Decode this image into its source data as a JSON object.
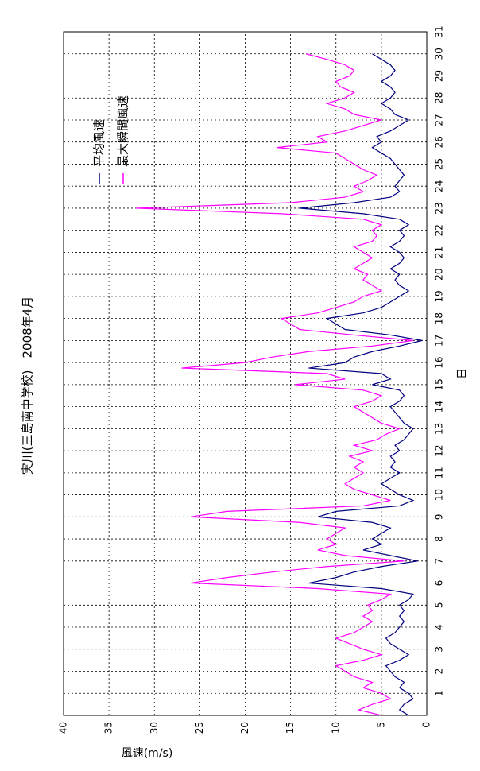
{
  "chart_data": {
    "type": "line",
    "title": "実川(三島南中学校)　2008年4月",
    "x_label": "日",
    "y_label": "風速(m/s)",
    "x": [
      0,
      0.25,
      0.5,
      0.75,
      1,
      1.25,
      1.5,
      1.75,
      2,
      2.25,
      2.5,
      2.75,
      3,
      3.25,
      3.5,
      3.75,
      4,
      4.25,
      4.5,
      4.75,
      5,
      5.25,
      5.5,
      5.75,
      6,
      6.25,
      6.5,
      6.75,
      7,
      7.25,
      7.5,
      7.75,
      8,
      8.25,
      8.5,
      8.75,
      9,
      9.25,
      9.5,
      9.75,
      10,
      10.25,
      10.5,
      10.75,
      11,
      11.25,
      11.5,
      11.75,
      12,
      12.25,
      12.5,
      12.75,
      13,
      13.25,
      13.5,
      13.75,
      14,
      14.25,
      14.5,
      14.75,
      15,
      15.25,
      15.5,
      15.75,
      16,
      16.25,
      16.5,
      16.75,
      17,
      17.25,
      17.5,
      17.75,
      18,
      18.25,
      18.5,
      18.75,
      19,
      19.25,
      19.5,
      19.75,
      20,
      20.25,
      20.5,
      20.75,
      21,
      21.25,
      21.5,
      21.75,
      22,
      22.25,
      22.5,
      22.75,
      23,
      23.25,
      23.5,
      23.75,
      24,
      24.25,
      24.5,
      24.75,
      25,
      25.25,
      25.5,
      25.75,
      26,
      26.25,
      26.5,
      26.75,
      27,
      27.25,
      27.5,
      27.75,
      28,
      28.25,
      28.5,
      28.75,
      29,
      29.25,
      29.5,
      29.75,
      30
    ],
    "series": [
      {
        "name": "平均風速",
        "color": "#000080",
        "values": [
          2,
          3,
          2.5,
          1.5,
          2,
          3,
          2.5,
          3.5,
          4,
          4.5,
          3,
          2,
          3,
          4,
          4.5,
          3.5,
          3,
          2.5,
          3,
          2.5,
          3,
          2,
          1.5,
          5,
          13,
          10,
          8,
          5,
          1,
          4,
          7,
          5,
          6,
          5,
          4,
          6,
          12,
          10,
          3,
          1.5,
          3,
          4,
          5,
          4,
          3,
          4,
          3.5,
          4,
          3,
          3.5,
          2.5,
          2,
          1.5,
          2.5,
          3,
          3.5,
          4,
          3,
          2.5,
          3,
          6,
          4,
          5,
          13,
          9,
          8,
          6,
          3,
          0.5,
          4,
          9,
          10,
          11,
          7,
          5,
          4,
          3,
          2,
          3,
          3.5,
          3,
          4,
          3,
          2.5,
          3,
          4,
          3,
          2.5,
          3,
          2,
          3,
          7,
          14,
          8,
          4,
          3,
          3.5,
          3,
          2.5,
          3,
          3.5,
          4,
          5,
          6,
          5,
          5.5,
          4,
          3,
          2,
          3.5,
          4,
          5,
          4,
          3.5,
          4,
          5,
          4,
          3.5,
          4,
          5,
          6
        ]
      },
      {
        "name": "最大瞬間風速",
        "color": "#ff00ff",
        "values": [
          5,
          7.5,
          6,
          4,
          5,
          7,
          6,
          8,
          9,
          10,
          7,
          5,
          7,
          8.5,
          10,
          8,
          7,
          6,
          7,
          6,
          6.5,
          5,
          4,
          12,
          26,
          22,
          17,
          11,
          2.5,
          9,
          12,
          10,
          11,
          10,
          9,
          14,
          26,
          22,
          7,
          4,
          6,
          8,
          9,
          8,
          7,
          8,
          7,
          8.5,
          6,
          8,
          5.5,
          4.5,
          3,
          5,
          6,
          7,
          8,
          6,
          5,
          7,
          14.5,
          9,
          11,
          27,
          20,
          17,
          13,
          6,
          1.5,
          8,
          14,
          15,
          16,
          12,
          10,
          8,
          7,
          5,
          6,
          7,
          6.5,
          8,
          7,
          6,
          7,
          8,
          6,
          5.5,
          6,
          5,
          7,
          16,
          32,
          15,
          9,
          7,
          8,
          6.5,
          5.5,
          7,
          8,
          9,
          10,
          16.5,
          11,
          12,
          9,
          7,
          5,
          8,
          9,
          11,
          9,
          8,
          9.5,
          10,
          8.5,
          8,
          9,
          11,
          13.3
        ]
      }
    ],
    "xlim": [
      0,
      31
    ],
    "xticks": [
      1,
      2,
      3,
      4,
      5,
      6,
      7,
      8,
      9,
      10,
      11,
      12,
      13,
      14,
      15,
      16,
      17,
      18,
      19,
      20,
      21,
      22,
      23,
      24,
      25,
      26,
      27,
      28,
      29,
      30,
      31
    ],
    "ylim": [
      0,
      40
    ],
    "yticks": [
      0,
      5,
      10,
      15,
      20,
      25,
      30,
      35,
      40
    ],
    "grid": true,
    "legend": "upper-right",
    "rotation": -90
  }
}
